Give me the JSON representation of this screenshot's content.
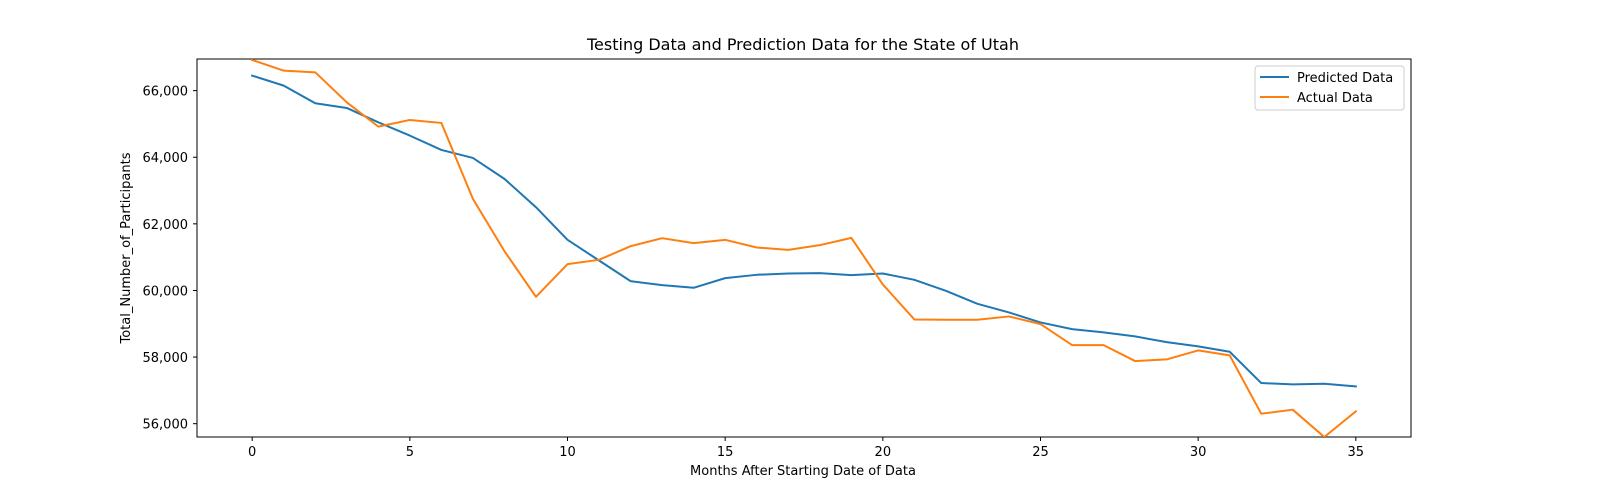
{
  "chart_data": {
    "type": "line",
    "title": "Testing Data and Prediction Data for the State of Utah",
    "xlabel": "Months After Starting Date of Data",
    "ylabel": "Total_Number_of_Participants",
    "xlim": [
      -1.75,
      36.75
    ],
    "ylim": [
      55600,
      66950
    ],
    "xticks": [
      0,
      5,
      10,
      15,
      20,
      25,
      30,
      35
    ],
    "xtick_labels": [
      "0",
      "5",
      "10",
      "15",
      "20",
      "25",
      "30",
      "35"
    ],
    "yticks": [
      56000,
      58000,
      60000,
      62000,
      64000,
      66000
    ],
    "ytick_labels": [
      "56,000",
      "58,000",
      "60,000",
      "62,000",
      "64,000",
      "66,000"
    ],
    "grid": false,
    "legend": "top-right",
    "x": [
      0,
      1,
      2,
      3,
      4,
      5,
      6,
      7,
      8,
      9,
      10,
      11,
      12,
      13,
      14,
      15,
      16,
      17,
      18,
      19,
      20,
      21,
      22,
      23,
      24,
      25,
      26,
      27,
      28,
      29,
      30,
      31,
      32,
      33,
      34,
      35
    ],
    "series": [
      {
        "name": "Predicted Data",
        "color": "#1f77b4",
        "values": [
          66450,
          66150,
          65620,
          65480,
          65050,
          64650,
          64220,
          63980,
          63350,
          62500,
          61520,
          60900,
          60280,
          60160,
          60080,
          60370,
          60470,
          60510,
          60520,
          60460,
          60510,
          60320,
          59990,
          59600,
          59340,
          59040,
          58840,
          58740,
          58620,
          58450,
          58320,
          58160,
          57220,
          57180,
          57200,
          57120
        ]
      },
      {
        "name": "Actual Data",
        "color": "#ff7f0e",
        "values": [
          66920,
          66600,
          66550,
          65650,
          64920,
          65120,
          65030,
          62750,
          61180,
          59810,
          60790,
          60920,
          61330,
          61570,
          61420,
          61520,
          61290,
          61220,
          61360,
          61580,
          60180,
          59130,
          59120,
          59120,
          59220,
          58990,
          58360,
          58360,
          57880,
          57930,
          58200,
          58050,
          56300,
          56420,
          55600,
          56370
        ]
      }
    ]
  }
}
